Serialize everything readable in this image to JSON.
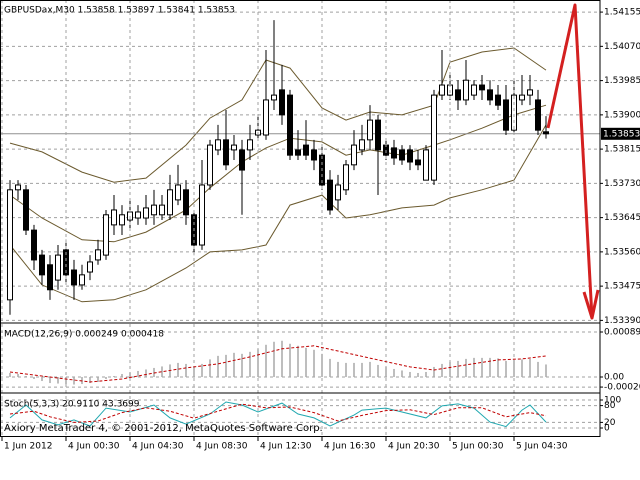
{
  "chart_data": [
    {
      "type": "candlestick",
      "title": "GBPUSDax,M30  1.53858 1.53897 1.53841 1.53853",
      "x": [
        0,
        1,
        2,
        3,
        4,
        5,
        6,
        7,
        8,
        9,
        10,
        11,
        12,
        13,
        14,
        15,
        16,
        17,
        18,
        19,
        20,
        21,
        22,
        23,
        24,
        25,
        26,
        27,
        28,
        29,
        30,
        31,
        32,
        33,
        34,
        35,
        36,
        37,
        38,
        39,
        40,
        41,
        42,
        43,
        44,
        45,
        46,
        47,
        48,
        49,
        50,
        51,
        52,
        53,
        54,
        55,
        56,
        57,
        58,
        59,
        60,
        61,
        62,
        63,
        64,
        65,
        66,
        67
      ],
      "open": [
        1.53441,
        1.53714,
        1.53714,
        1.53614,
        1.53552,
        1.53528,
        1.5349,
        1.53565,
        1.53515,
        1.53478,
        1.5351,
        1.5354,
        1.53552,
        1.53627,
        1.53627,
        1.53639,
        1.53644,
        1.53644,
        1.53652,
        1.53652,
        1.53652,
        1.53689,
        1.53714,
        1.53652,
        1.53577,
        1.53726,
        1.53813,
        1.53838,
        1.53813,
        1.53813,
        1.53813,
        1.5385,
        1.5385,
        1.53937,
        1.53962,
        1.53949,
        1.53813,
        1.53825,
        1.53813,
        1.538,
        1.53738,
        1.53689,
        1.53714,
        1.53776,
        1.53813,
        1.53838,
        1.53887,
        1.53825,
        1.53818,
        1.53813,
        1.53813,
        1.53788,
        1.53738,
        1.53738,
        1.53949,
        1.53949,
        1.53962,
        1.53937,
        1.53949,
        1.53974,
        1.53962,
        1.53949,
        1.53937,
        1.53862,
        1.53937,
        1.53949,
        1.53937,
        1.53858
      ],
      "high": [
        1.53738,
        1.53738,
        1.53726,
        1.53627,
        1.53565,
        1.53552,
        1.53577,
        1.5359,
        1.5354,
        1.53528,
        1.53552,
        1.5359,
        1.53664,
        1.53701,
        1.53676,
        1.53689,
        1.53676,
        1.53701,
        1.53714,
        1.53701,
        1.53751,
        1.53776,
        1.53738,
        1.53664,
        1.53788,
        1.53838,
        1.53875,
        1.53912,
        1.5385,
        1.53838,
        1.53875,
        1.539,
        1.54061,
        1.54135,
        1.54024,
        1.53962,
        1.53862,
        1.53887,
        1.53838,
        1.53825,
        1.53763,
        1.53751,
        1.53788,
        1.53862,
        1.53875,
        1.53924,
        1.539,
        1.53838,
        1.53838,
        1.53825,
        1.53825,
        1.53813,
        1.53825,
        1.53962,
        1.54061,
        1.53999,
        1.53986,
        1.54036,
        1.53986,
        1.53999,
        1.53986,
        1.53974,
        1.53974,
        1.53986,
        1.53999,
        1.53999,
        1.53962,
        1.53897
      ],
      "low": [
        1.53404,
        1.53689,
        1.53602,
        1.53515,
        1.53478,
        1.53441,
        1.53466,
        1.53478,
        1.53441,
        1.53466,
        1.5349,
        1.53528,
        1.5354,
        1.53602,
        1.53602,
        1.53614,
        1.53627,
        1.53627,
        1.53627,
        1.53639,
        1.53639,
        1.53676,
        1.53627,
        1.53552,
        1.53565,
        1.53714,
        1.538,
        1.53763,
        1.53788,
        1.53652,
        1.53788,
        1.53838,
        1.53838,
        1.53912,
        1.53875,
        1.53788,
        1.53788,
        1.53788,
        1.53763,
        1.53714,
        1.53652,
        1.53664,
        1.53701,
        1.53763,
        1.538,
        1.53813,
        1.53701,
        1.53788,
        1.53776,
        1.53776,
        1.53763,
        1.53763,
        1.53738,
        1.53726,
        1.53937,
        1.53937,
        1.53912,
        1.53924,
        1.53937,
        1.53937,
        1.53924,
        1.53912,
        1.5385,
        1.5385,
        1.53924,
        1.53924,
        1.5385,
        1.53841
      ],
      "close": [
        1.53714,
        1.53726,
        1.53614,
        1.5354,
        1.53503,
        1.53466,
        1.53552,
        1.53503,
        1.53478,
        1.53503,
        1.53535,
        1.53565,
        1.53652,
        1.53664,
        1.53652,
        1.53659,
        1.53659,
        1.53669,
        1.53676,
        1.53676,
        1.53714,
        1.53726,
        1.53652,
        1.53577,
        1.53726,
        1.53825,
        1.53838,
        1.53776,
        1.53825,
        1.53763,
        1.53838,
        1.53862,
        1.53937,
        1.53949,
        1.539,
        1.538,
        1.538,
        1.538,
        1.53788,
        1.53726,
        1.53664,
        1.53726,
        1.53776,
        1.53825,
        1.53838,
        1.53887,
        1.53813,
        1.538,
        1.53793,
        1.53788,
        1.53783,
        1.53776,
        1.53813,
        1.53949,
        1.53974,
        1.53974,
        1.53937,
        1.53986,
        1.53974,
        1.53962,
        1.53937,
        1.53924,
        1.53862,
        1.53949,
        1.53949,
        1.53962,
        1.53862,
        1.53853
      ],
      "up_color": "#ffffff",
      "down_color": "#000000",
      "wick_color": "#000000",
      "overlays": [
        {
          "color": "#6b5a2e",
          "x": [
            0,
            4,
            9,
            13,
            17,
            22,
            25,
            29,
            32,
            35,
            39,
            42,
            45,
            49,
            53,
            55,
            59,
            63,
            67
          ],
          "values": [
            1.5383,
            1.53808,
            1.53758,
            1.53733,
            1.53743,
            1.53825,
            1.53892,
            1.53937,
            1.54036,
            1.54016,
            1.53917,
            1.53887,
            1.53907,
            1.539,
            1.53924,
            1.54031,
            1.54056,
            1.54066,
            1.54011
          ]
        },
        {
          "color": "#6b5a2e",
          "x": [
            0,
            4,
            9,
            13,
            17,
            22,
            25,
            29,
            32,
            35,
            39,
            42,
            45,
            49,
            53,
            55,
            59,
            63,
            67
          ],
          "values": [
            1.53701,
            1.53644,
            1.5359,
            1.53585,
            1.53609,
            1.53664,
            1.53719,
            1.53783,
            1.53818,
            1.53842,
            1.53833,
            1.538,
            1.53813,
            1.538,
            1.53825,
            1.53838,
            1.53867,
            1.539,
            1.53924
          ]
        },
        {
          "color": "#6b5a2e",
          "x": [
            0,
            4,
            9,
            13,
            17,
            22,
            25,
            29,
            32,
            35,
            39,
            42,
            45,
            49,
            53,
            55,
            59,
            63,
            67
          ],
          "values": [
            1.53577,
            1.53478,
            1.53436,
            1.53441,
            1.53466,
            1.5352,
            1.5356,
            1.53565,
            1.53577,
            1.53676,
            1.53701,
            1.53644,
            1.53652,
            1.53669,
            1.53676,
            1.53694,
            1.53714,
            1.53738,
            1.53875
          ]
        }
      ],
      "xlim": [
        -1.25,
        73.75
      ],
      "xticks": [
        {
          "value": -1,
          "label": "1 Jun 2012"
        },
        {
          "value": 7,
          "label": "4 Jun 00:30"
        },
        {
          "value": 15,
          "label": "4 Jun 04:30"
        },
        {
          "value": 23,
          "label": "4 Jun 08:30"
        },
        {
          "value": 31,
          "label": "4 Jun 12:30"
        },
        {
          "value": 39,
          "label": "4 Jun 16:30"
        },
        {
          "value": 47,
          "label": "4 Jun 20:30"
        },
        {
          "value": 55,
          "label": "5 Jun 00:30"
        },
        {
          "value": 63,
          "label": "5 Jun 04:30"
        }
      ],
      "ylim": [
        1.53386,
        1.54185
      ],
      "yticks": [
        1.54155,
        {
          "value": 1.5407,
          "label": "1.54070"
        },
        1.53985,
        {
          "value": 1.539,
          "label": "1.53900"
        },
        1.53815,
        {
          "value": 1.5373,
          "label": "1.53730"
        },
        1.53645,
        {
          "value": 1.5356,
          "label": "1.53560"
        },
        1.53475,
        {
          "value": 1.5339,
          "label": "1.53390"
        }
      ],
      "grid": true,
      "price_line": true
    },
    {
      "type": "macd",
      "title": "MACD(12,26,9) 0.000249 0.000418",
      "xlim": [
        -1.25,
        73.75
      ],
      "ylim": [
        -0.000298,
        0.001053
      ],
      "yticks": [
        0.000894,
        {
          "value": 0,
          "label": "0.00"
        },
        {
          "value": -0.0002,
          "label": "-0.00020"
        }
      ],
      "grid": true,
      "series": [
        {
          "style": "bar",
          "color": "#a8a8a8",
          "x": [
            0,
            1,
            2,
            3,
            4,
            5,
            6,
            7,
            8,
            9,
            10,
            11,
            12,
            13,
            14,
            15,
            16,
            17,
            18,
            19,
            20,
            21,
            22,
            23,
            24,
            25,
            26,
            27,
            28,
            29,
            30,
            31,
            32,
            33,
            34,
            35,
            36,
            37,
            38,
            39,
            40,
            41,
            42,
            43,
            44,
            45,
            46,
            47,
            48,
            49,
            50,
            51,
            52,
            53,
            54,
            55,
            56,
            57,
            58,
            59,
            60,
            61,
            62,
            63,
            64,
            65,
            66,
            67
          ],
          "values": [
            8e-05,
            6e-05,
            2e-05,
            -4e-05,
            -8e-05,
            -0.00012,
            -0.00013,
            -0.00014,
            -0.00015,
            -0.00014,
            -0.00012,
            -0.0001,
            -4e-05,
            2e-05,
            6e-05,
            9e-05,
            0.00012,
            0.00015,
            0.00018,
            0.00021,
            0.00025,
            0.00028,
            0.00026,
            0.0002,
            0.00026,
            0.00035,
            0.00042,
            0.00044,
            0.00048,
            0.00046,
            0.0005,
            0.00055,
            0.00064,
            0.0007,
            0.00072,
            0.00066,
            0.00062,
            0.00058,
            0.00054,
            0.00046,
            0.00036,
            0.0003,
            0.00028,
            0.00028,
            0.00028,
            0.0003,
            0.00024,
            0.0002,
            0.00016,
            0.00013,
            0.0001,
            8e-05,
            0.0001,
            0.0002,
            0.00026,
            0.0003,
            0.00032,
            0.00036,
            0.00038,
            0.00038,
            0.00038,
            0.00037,
            0.00032,
            0.00034,
            0.00035,
            0.00036,
            0.0003,
            0.000249
          ]
        },
        {
          "style": "dashed",
          "color": "#c00000",
          "x": [
            0,
            5,
            10,
            14,
            18,
            22,
            26,
            30,
            34,
            38,
            42,
            46,
            50,
            53,
            57,
            61,
            64,
            67
          ],
          "values": [
            0.0001,
            0,
            -0.0001,
            -4e-05,
            8e-05,
            0.00018,
            0.00026,
            0.0004,
            0.00056,
            0.00062,
            0.00048,
            0.00034,
            0.0002,
            0.00014,
            0.00024,
            0.00034,
            0.00036,
            0.000418
          ]
        }
      ]
    },
    {
      "type": "stochastic",
      "title": "Stoch(5,3,3) 20.9110 43.3699",
      "xlim": [
        -1.25,
        73.75
      ],
      "ylim": [
        -28.6,
        121.4
      ],
      "yticks": [
        100,
        80,
        20,
        0
      ],
      "grid": true,
      "series": [
        {
          "style": "solid",
          "color": "#20a8b0",
          "x": [
            0,
            2,
            4,
            6,
            8,
            10,
            12,
            15,
            18,
            20,
            22,
            25,
            27,
            29,
            31,
            34,
            36,
            38,
            40,
            43,
            44,
            47,
            49,
            52,
            54,
            56,
            58,
            60,
            62,
            64,
            65,
            67
          ],
          "values": [
            36,
            82,
            29,
            11,
            29,
            7,
            71,
            57,
            82,
            36,
            14,
            50,
            93,
            82,
            57,
            89,
            50,
            36,
            7,
            46,
            64,
            71,
            57,
            36,
            79,
            86,
            71,
            21,
            5,
            64,
            82,
            20.911
          ]
        },
        {
          "style": "dashed",
          "color": "#c00000",
          "x": [
            0,
            3,
            5,
            8,
            11,
            14,
            17,
            20,
            23,
            26,
            29,
            32,
            35,
            38,
            41,
            44,
            47,
            50,
            53,
            56,
            59,
            62,
            65,
            67
          ],
          "values": [
            50,
            60,
            40,
            20,
            25,
            55,
            72,
            60,
            35,
            60,
            85,
            72,
            75,
            55,
            25,
            45,
            62,
            65,
            48,
            72,
            72,
            40,
            55,
            43.3699
          ]
        }
      ]
    }
  ],
  "footer": "Axiory MetaTrader 4, © 2001-2012, MetaQuotes Software Corp."
}
